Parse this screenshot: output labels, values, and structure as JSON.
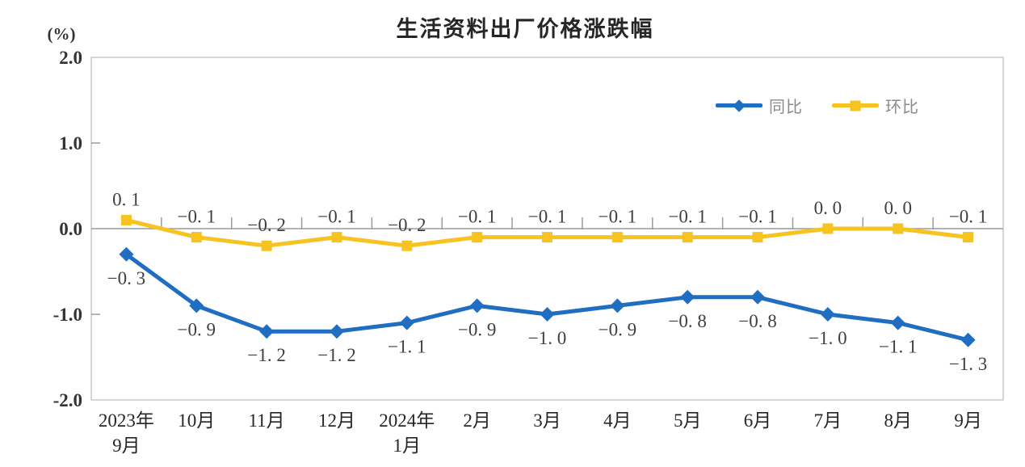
{
  "chart": {
    "title": "生活资料出厂价格涨跌幅",
    "unit_label": "(%)"
  },
  "legend": {
    "items": [
      {
        "label": "同比",
        "color": "#1f6ec1",
        "marker": "diamond"
      },
      {
        "label": "环比",
        "color": "#f6c320",
        "marker": "square"
      }
    ]
  },
  "colors": {
    "frame": "#c8c8c8",
    "zero_line": "#9a9a9a",
    "tick": "#9a9a9a",
    "data_label": "#3f3f3f",
    "axis_text": "#333333",
    "series_tongbi": "#1f6ec1",
    "series_huanbi": "#f6c320"
  },
  "chart_data": {
    "type": "line",
    "title": "生活资料出厂价格涨跌幅",
    "ylabel": "(%)",
    "xlabel": "",
    "ylim": [
      -2.0,
      2.0
    ],
    "yticks": [
      "2.0",
      "1.0",
      "0.0",
      "-1.0",
      "-2.0"
    ],
    "ytick_values": [
      2,
      1,
      0,
      -1,
      -2
    ],
    "grid": "zero-line-only",
    "legend_position": "top-right-inside",
    "categories": [
      [
        "2023年",
        "9月"
      ],
      [
        "10月"
      ],
      [
        "11月"
      ],
      [
        "12月"
      ],
      [
        "2024年",
        "1月"
      ],
      [
        "2月"
      ],
      [
        "3月"
      ],
      [
        "4月"
      ],
      [
        "5月"
      ],
      [
        "6月"
      ],
      [
        "7月"
      ],
      [
        "8月"
      ],
      [
        "9月"
      ]
    ],
    "series": [
      {
        "name": "同比",
        "color": "#1f6ec1",
        "marker": "diamond",
        "label_side": "below",
        "values": [
          -0.3,
          -0.9,
          -1.2,
          -1.2,
          -1.1,
          -0.9,
          -1.0,
          -0.9,
          -0.8,
          -0.8,
          -1.0,
          -1.1,
          -1.3
        ],
        "labels": [
          "−0. 3",
          "−0. 9",
          "−1. 2",
          "−1. 2",
          "−1. 1",
          "−0. 9",
          "−1. 0",
          "−0. 9",
          "−0. 8",
          "−0. 8",
          "−1. 0",
          "−1. 1",
          "−1. 3"
        ]
      },
      {
        "name": "环比",
        "color": "#f6c320",
        "marker": "square",
        "label_side": "above",
        "values": [
          0.1,
          -0.1,
          -0.2,
          -0.1,
          -0.2,
          -0.1,
          -0.1,
          -0.1,
          -0.1,
          -0.1,
          0.0,
          0.0,
          -0.1
        ],
        "labels": [
          "0. 1",
          "−0. 1",
          "−0. 2",
          "−0. 1",
          "−0. 2",
          "−0. 1",
          "−0. 1",
          "−0. 1",
          "−0. 1",
          "−0. 1",
          "0. 0",
          "0. 0",
          "−0. 1"
        ]
      }
    ]
  }
}
